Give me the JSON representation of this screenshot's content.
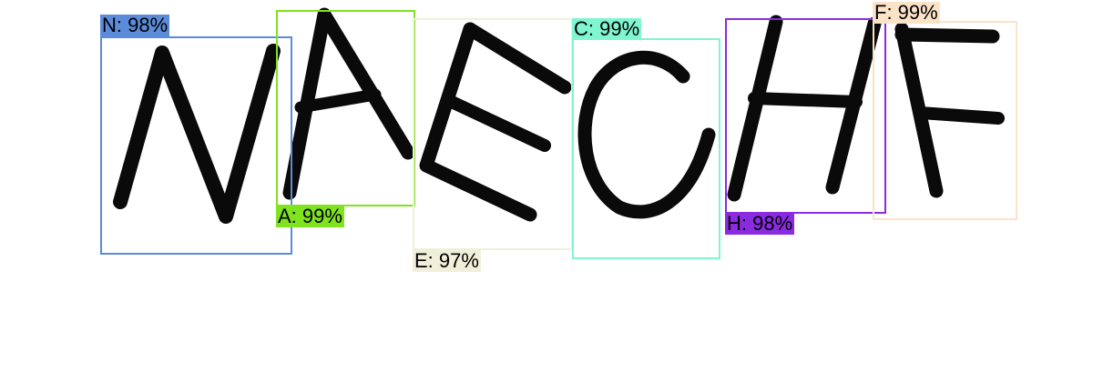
{
  "detections": [
    {
      "id": "n",
      "label": "N: 98%",
      "color": "#5b8bd9"
    },
    {
      "id": "a",
      "label": "A: 99%",
      "color": "#7fe31f"
    },
    {
      "id": "e",
      "label": "E: 97%",
      "color": "#f0f0da"
    },
    {
      "id": "c",
      "label": "C: 99%",
      "color": "#7ff5d0"
    },
    {
      "id": "h",
      "label": "H: 98%",
      "color": "#8a2be2"
    },
    {
      "id": "f",
      "label": "F: 99%",
      "color": "#fbe3c8"
    }
  ]
}
